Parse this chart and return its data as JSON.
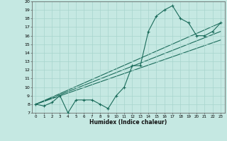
{
  "xlabel": "Humidex (Indice chaleur)",
  "xlim": [
    -0.5,
    23.5
  ],
  "ylim": [
    7,
    20
  ],
  "xticks": [
    0,
    1,
    2,
    3,
    4,
    5,
    6,
    7,
    8,
    9,
    10,
    11,
    12,
    13,
    14,
    15,
    16,
    17,
    18,
    19,
    20,
    21,
    22,
    23
  ],
  "yticks": [
    7,
    8,
    9,
    10,
    11,
    12,
    13,
    14,
    15,
    16,
    17,
    18,
    19,
    20
  ],
  "background_color": "#c5e8e2",
  "grid_color": "#a8d4cd",
  "line_color": "#1a6b5a",
  "line1_x": [
    0,
    1,
    2,
    3,
    4,
    5,
    6,
    7,
    8,
    9,
    10,
    11,
    12,
    13,
    14,
    15,
    16,
    17,
    18,
    19,
    20,
    21,
    22,
    23
  ],
  "line1_y": [
    8.0,
    7.8,
    8.2,
    9.0,
    7.0,
    8.5,
    8.5,
    8.5,
    8.0,
    7.5,
    9.0,
    10.0,
    12.5,
    12.5,
    16.5,
    18.3,
    19.0,
    19.5,
    18.0,
    17.5,
    16.0,
    16.0,
    16.5,
    17.5
  ],
  "line2_x": [
    0,
    23
  ],
  "line2_y": [
    8.0,
    17.5
  ],
  "line3_x": [
    0,
    23
  ],
  "line3_y": [
    8.0,
    16.5
  ],
  "line4_x": [
    0,
    23
  ],
  "line4_y": [
    8.0,
    15.5
  ]
}
